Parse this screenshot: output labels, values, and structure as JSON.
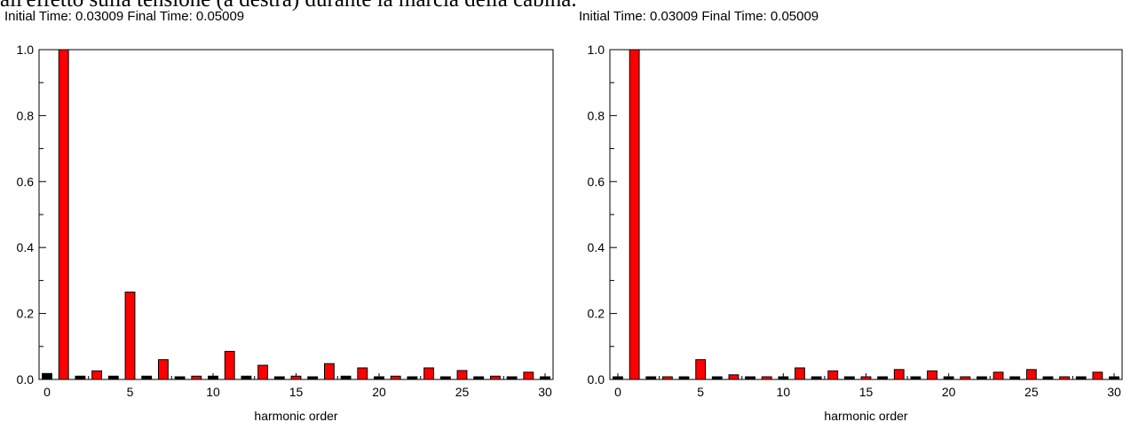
{
  "caption": "all'effetto sulla tensione (a destra) durante la marcia della cabina.",
  "chart_data": [
    {
      "type": "bar",
      "subtitle": "Initial Time: 0.03009    Final Time: 0.05009",
      "xlabel": "harmonic order",
      "xlim": [
        0,
        30
      ],
      "ylim": [
        0,
        1.0
      ],
      "x_ticks": [
        "0",
        "5",
        "10",
        "15",
        "20",
        "25",
        "30"
      ],
      "y_ticks": [
        "0.0",
        "0.2",
        "0.4",
        "0.6",
        "0.8",
        "1.0"
      ],
      "x": [
        0,
        1,
        2,
        3,
        4,
        5,
        6,
        7,
        8,
        9,
        10,
        11,
        12,
        13,
        14,
        15,
        16,
        17,
        18,
        19,
        20,
        21,
        22,
        23,
        24,
        25,
        26,
        27,
        28,
        29,
        30
      ],
      "values": [
        0.018,
        1.0,
        0.01,
        0.026,
        0.01,
        0.265,
        0.01,
        0.06,
        0.006,
        0.01,
        0.01,
        0.085,
        0.01,
        0.043,
        0.006,
        0.01,
        0.006,
        0.048,
        0.01,
        0.035,
        0.006,
        0.01,
        0.006,
        0.035,
        0.006,
        0.027,
        0.006,
        0.01,
        0.006,
        0.022,
        0.006
      ],
      "grid": false
    },
    {
      "type": "bar",
      "subtitle": "Initial Time: 0.03009    Final Time: 0.05009",
      "xlabel": "harmonic order",
      "xlim": [
        0,
        30
      ],
      "ylim": [
        0,
        1.0
      ],
      "x_ticks": [
        "0",
        "5",
        "10",
        "15",
        "20",
        "25",
        "30"
      ],
      "y_ticks": [
        "0.0",
        "0.2",
        "0.4",
        "0.6",
        "0.8",
        "1.0"
      ],
      "x": [
        0,
        1,
        2,
        3,
        4,
        5,
        6,
        7,
        8,
        9,
        10,
        11,
        12,
        13,
        14,
        15,
        16,
        17,
        18,
        19,
        20,
        21,
        22,
        23,
        24,
        25,
        26,
        27,
        28,
        29,
        30
      ],
      "values": [
        0.006,
        1.0,
        0.006,
        0.006,
        0.006,
        0.06,
        0.006,
        0.014,
        0.006,
        0.006,
        0.006,
        0.035,
        0.006,
        0.026,
        0.006,
        0.006,
        0.006,
        0.03,
        0.006,
        0.026,
        0.006,
        0.006,
        0.006,
        0.022,
        0.006,
        0.03,
        0.006,
        0.006,
        0.006,
        0.022,
        0.006
      ],
      "grid": false
    }
  ],
  "colors": {
    "bar_odd": "#ff0000",
    "bar_even": "#000000",
    "bar_stroke": "#000000",
    "axis": "#000000"
  }
}
